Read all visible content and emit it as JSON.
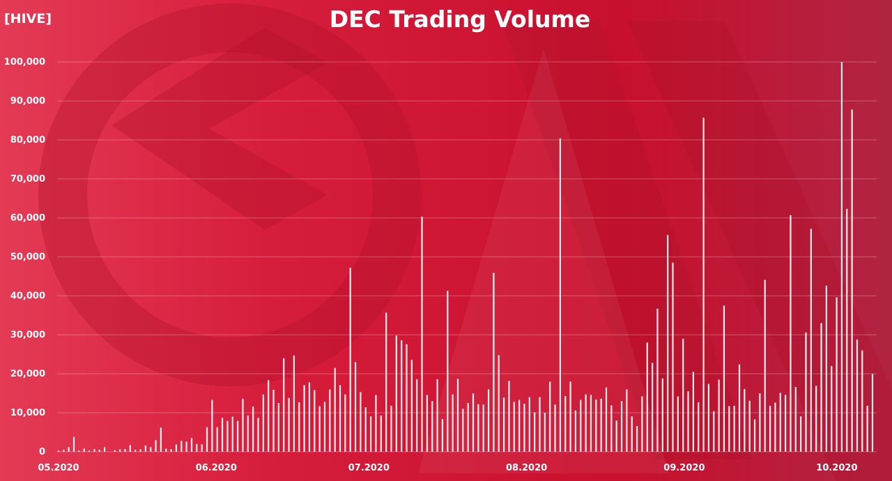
{
  "chart_data": {
    "type": "bar",
    "title": "DEC Trading Volume",
    "unit_label": "[HIVE]",
    "ylim": [
      0,
      100000
    ],
    "y_ticks": [
      "0",
      "10,000",
      "20,000",
      "30,000",
      "40,000",
      "50,000",
      "60,000",
      "70,000",
      "80,000",
      "90,000",
      "100,000"
    ],
    "x_tick_labels": [
      "05.2020",
      "06.2020",
      "07.2020",
      "08.2020",
      "09.2020",
      "10.2020"
    ],
    "x_range": [
      "2020-05-01",
      "2020-10-08"
    ],
    "grid": true,
    "colors": {
      "bar": "#ffffff",
      "background": "#c8102e"
    },
    "series": [
      {
        "values": [
          300,
          500,
          1200,
          3800,
          300,
          800,
          300,
          700,
          500,
          1200,
          0,
          400,
          600,
          700,
          1700,
          500,
          600,
          1600,
          1200,
          3000,
          6200,
          800,
          700,
          1900,
          2800,
          2600,
          3500,
          2000,
          1900,
          6300,
          13300,
          6300,
          8700,
          7900,
          9000,
          7900,
          13600,
          9300,
          11600,
          8700,
          14700,
          18400,
          15900,
          12500,
          24000,
          13800,
          24700,
          12700,
          17100,
          17800,
          15800,
          11700,
          12800,
          16000,
          21500,
          17100,
          14700,
          47200,
          23000,
          15300,
          11400,
          9100,
          14600,
          9300,
          35700,
          11800,
          29800,
          28600,
          27600,
          23600,
          18600,
          60300,
          14600,
          13000,
          18600,
          8400,
          41300,
          14700,
          18700,
          11000,
          12500,
          15000,
          12200,
          12100,
          16000,
          45900,
          24800,
          13900,
          18200,
          12800,
          13300,
          12300,
          14000,
          10100,
          14000,
          10000,
          18000,
          12100,
          80400,
          14300,
          18000,
          10600,
          13300,
          14700,
          14600,
          13400,
          13600,
          16500,
          11900,
          8000,
          13000,
          16000,
          9100,
          6600,
          14200,
          28000,
          22800,
          36700,
          18800,
          55600,
          48500,
          14200,
          29000,
          15500,
          20500,
          12700,
          85700,
          17400,
          10400,
          18500,
          37500,
          11700,
          11800,
          22400,
          16100,
          13100,
          8300,
          15000,
          44100,
          11800,
          12600,
          15100,
          14600,
          60700,
          16600,
          9100,
          30600,
          57200,
          16900,
          33000,
          42600,
          22000,
          39600,
          100000,
          62300,
          87800,
          28800,
          26000,
          11800,
          20000
        ]
      }
    ]
  }
}
